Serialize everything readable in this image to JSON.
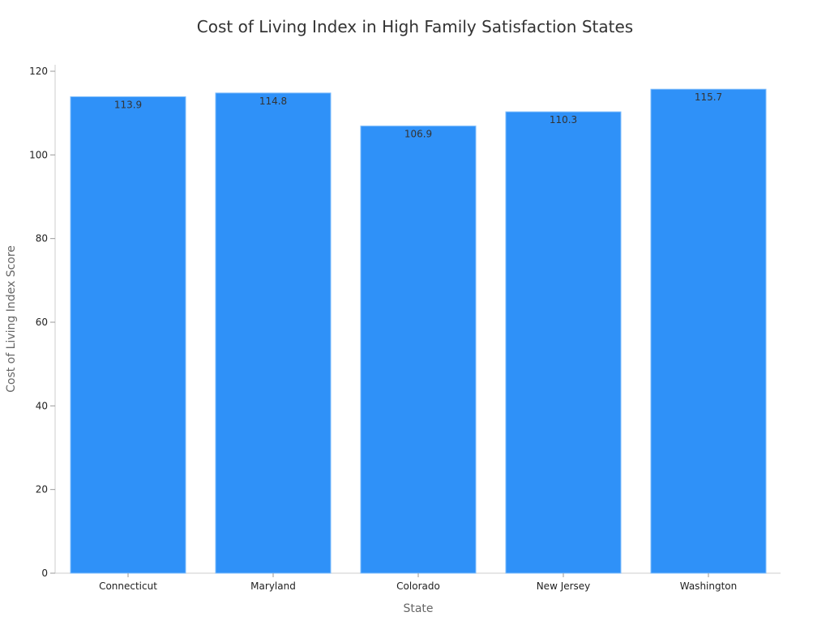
{
  "chart_data": {
    "type": "bar",
    "title": "Cost of Living Index in High Family Satisfaction States",
    "xlabel": "State",
    "ylabel": "Cost of Living Index Score",
    "categories": [
      "Connecticut",
      "Maryland",
      "Colorado",
      "New Jersey",
      "Washington"
    ],
    "values": [
      113.9,
      114.8,
      106.9,
      110.3,
      115.7
    ],
    "data_labels": [
      "113.9",
      "114.8",
      "106.9",
      "110.3",
      "115.7"
    ],
    "ylim": [
      0,
      120
    ],
    "yticks": [
      0,
      20,
      40,
      60,
      80,
      100,
      120
    ],
    "grid": false,
    "legend": "none",
    "bar_color": "#2f91f8",
    "bar_edge_color": "#7fbdfb"
  }
}
